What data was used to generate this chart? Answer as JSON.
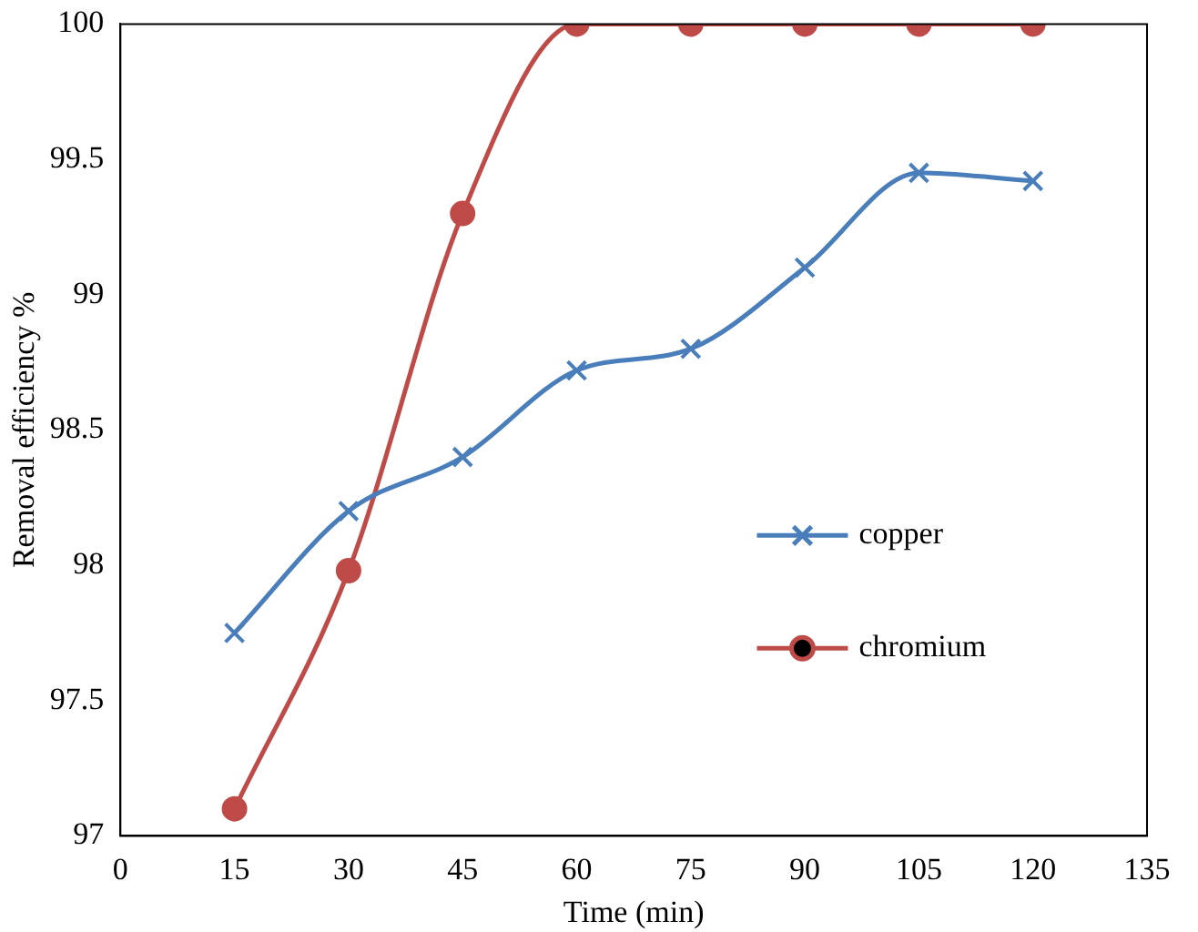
{
  "chart_data": {
    "type": "line",
    "xlabel": "Time (min)",
    "ylabel": "Removal efficiency %",
    "x": [
      15,
      30,
      45,
      60,
      75,
      90,
      105,
      120
    ],
    "series": [
      {
        "name": "copper",
        "color": "#4a7ebb",
        "marker": "cross",
        "values": [
          97.75,
          98.2,
          98.4,
          98.72,
          98.8,
          99.1,
          99.45,
          99.42
        ]
      },
      {
        "name": "chromium",
        "color": "#be4b48",
        "marker": "circle",
        "values": [
          97.1,
          97.98,
          99.3,
          100,
          100,
          100,
          100,
          100
        ]
      }
    ],
    "xlim": [
      0,
      135
    ],
    "xticks": [
      0,
      15,
      30,
      45,
      60,
      75,
      90,
      105,
      120,
      135
    ],
    "ylim": [
      97,
      100
    ],
    "yticks": [
      97,
      97.5,
      98,
      98.5,
      99,
      99.5,
      100
    ],
    "grid": false,
    "legend": "right",
    "line_style": "solid"
  }
}
